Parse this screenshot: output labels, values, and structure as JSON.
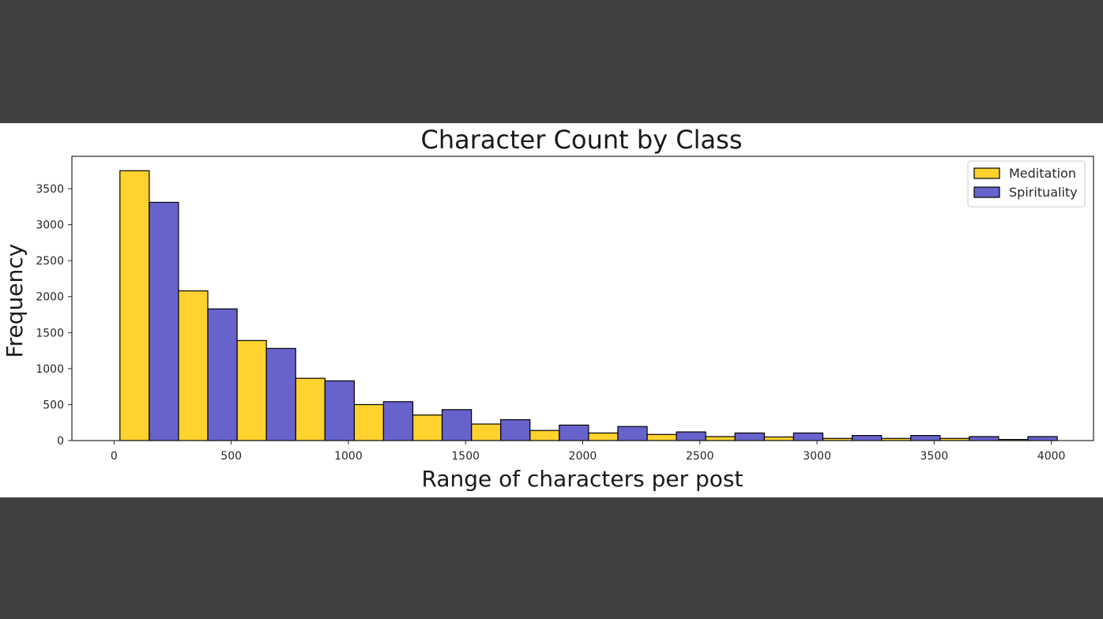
{
  "chart_data": {
    "type": "bar",
    "title": "Character Count by Class",
    "xlabel": "Range of characters per post",
    "ylabel": "Frequency",
    "xlim": [
      -180,
      4180
    ],
    "ylim": [
      0,
      3950
    ],
    "xticks": [
      0,
      500,
      1000,
      1500,
      2000,
      2500,
      3000,
      3500,
      4000
    ],
    "yticks": [
      0,
      500,
      1000,
      1500,
      2000,
      2500,
      3000,
      3500
    ],
    "bin_edges": [
      25,
      275,
      525,
      775,
      1025,
      1275,
      1525,
      1775,
      2025,
      2275,
      2525,
      2775,
      3025,
      3275,
      3525,
      3775,
      4025
    ],
    "grid": false,
    "legend_position": "top-right",
    "series": [
      {
        "name": "Meditation",
        "color": "#ffd22e",
        "values": [
          3750,
          2080,
          1390,
          865,
          500,
          355,
          230,
          140,
          105,
          85,
          55,
          50,
          30,
          30,
          30,
          15
        ]
      },
      {
        "name": "Spirituality",
        "color": "#6862cc",
        "values": [
          3310,
          1830,
          1280,
          830,
          540,
          430,
          290,
          215,
          195,
          120,
          105,
          105,
          70,
          70,
          55,
          55
        ]
      }
    ]
  }
}
